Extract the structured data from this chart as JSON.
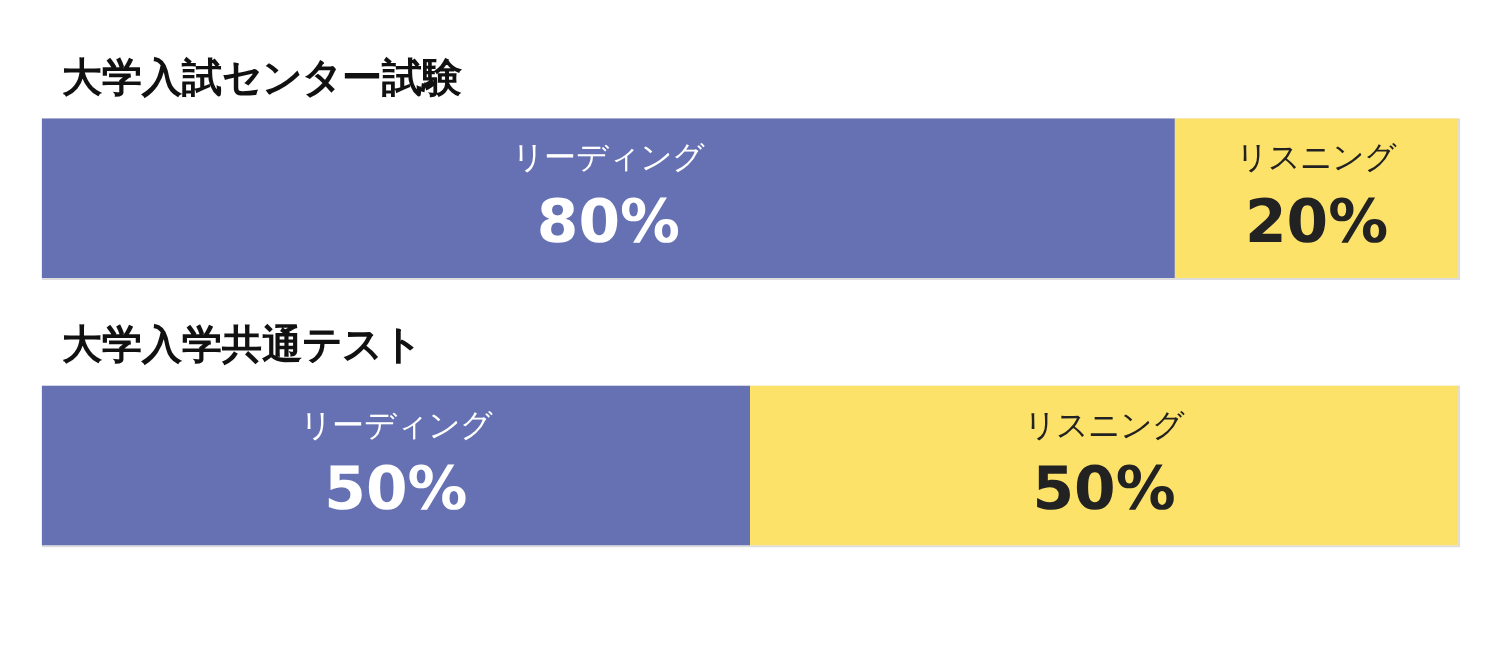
{
  "chart_data": [
    {
      "type": "bar",
      "title": "大学入試センター試験",
      "orientation": "horizontal",
      "stacked": true,
      "categories": [
        null
      ],
      "xlim": [
        0,
        100
      ],
      "tick_labels": false,
      "legend": false,
      "series": [
        {
          "name": "リーディング",
          "color": "#6571b3",
          "values": [
            80
          ],
          "value_labels": [
            "80%"
          ]
        },
        {
          "name": "リスニング",
          "color": "#fde26a",
          "values": [
            20
          ],
          "value_labels": [
            "20%"
          ]
        }
      ]
    },
    {
      "type": "bar",
      "title": "大学入学共通テスト",
      "orientation": "horizontal",
      "stacked": true,
      "categories": [
        null
      ],
      "xlim": [
        0,
        100
      ],
      "tick_labels": false,
      "legend": false,
      "series": [
        {
          "name": "リーディング",
          "color": "#6571b3",
          "values": [
            50
          ],
          "value_labels": [
            "50%"
          ]
        },
        {
          "name": "リスニング",
          "color": "#fde26a",
          "values": [
            50
          ],
          "value_labels": [
            "50%"
          ]
        }
      ]
    }
  ]
}
